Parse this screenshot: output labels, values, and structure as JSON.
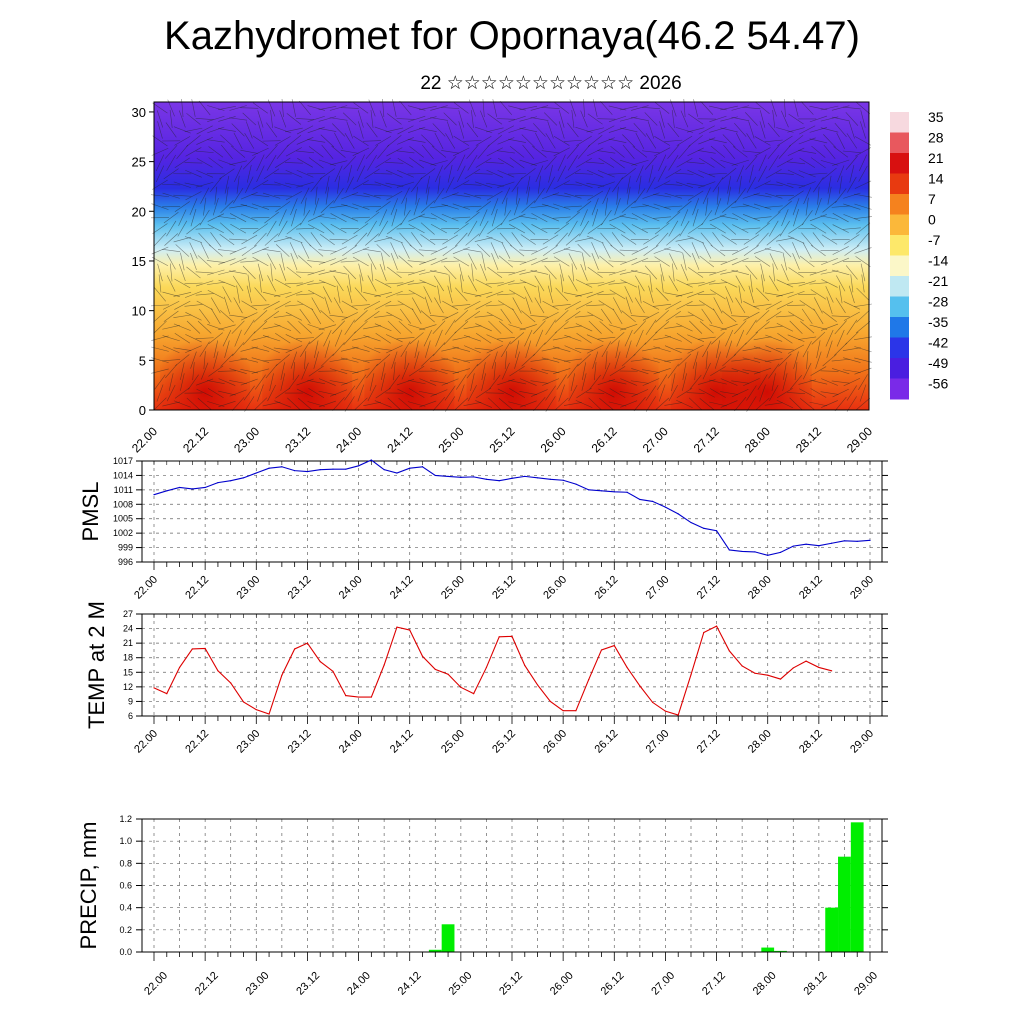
{
  "title": "Kazhydromet for Opornaya(46.2 54.47)",
  "subtitle": "22 ☆☆☆☆☆☆☆☆☆☆☆ 2026",
  "time_labels": [
    "22.00",
    "22.12",
    "23.00",
    "23.12",
    "24.00",
    "24.12",
    "25.00",
    "25.12",
    "26.00",
    "26.12",
    "27.00",
    "27.12",
    "28.00",
    "28.12",
    "29.00"
  ],
  "chart_data": [
    {
      "type": "heatmap",
      "name": "cross-section",
      "title": "",
      "ylim": [
        0,
        31
      ],
      "y_ticks": [
        0,
        5,
        10,
        15,
        20,
        25,
        30
      ],
      "color_scale": {
        "labels": [
          "35",
          "28",
          "21",
          "14",
          "7",
          "0",
          "-7",
          "-14",
          "-21",
          "-28",
          "-35",
          "-42",
          "-49",
          "-56"
        ],
        "colors": [
          "#f7d9df",
          "#e8585e",
          "#d81010",
          "#e83a10",
          "#f5821e",
          "#fbb83a",
          "#fde86a",
          "#fbf7c8",
          "#bfe8f2",
          "#55c0ee",
          "#1f78e8",
          "#2b35e8",
          "#4a1ee0",
          "#7a2ae8"
        ]
      },
      "overlay": "wind barbs"
    },
    {
      "type": "line",
      "name": "pmsl",
      "ylabel": "PMSL",
      "ylim": [
        996,
        1017
      ],
      "y_ticks": [
        996,
        999,
        1002,
        1005,
        1008,
        1011,
        1014,
        1017
      ],
      "color": "#0000cc",
      "x": [
        0,
        1,
        2,
        3,
        4,
        5,
        6,
        7,
        8,
        9,
        10,
        11,
        12,
        13,
        14,
        15,
        16,
        17,
        18,
        19,
        20,
        21,
        22,
        23,
        24,
        25,
        26,
        27,
        28,
        29,
        30,
        31,
        32,
        33,
        34,
        35,
        36,
        37,
        38,
        39,
        40,
        41,
        42,
        43,
        44,
        45,
        46,
        47,
        48,
        49,
        50,
        51,
        52,
        53,
        54,
        55,
        56
      ],
      "values": [
        1010,
        1010.8,
        1011.5,
        1011.2,
        1011.5,
        1012.5,
        1012.9,
        1013.5,
        1014.5,
        1015.5,
        1015.8,
        1015,
        1014.8,
        1015.2,
        1015.3,
        1015.3,
        1016,
        1017.2,
        1015.2,
        1014.5,
        1015.5,
        1015.8,
        1014,
        1013.8,
        1013.6,
        1013.7,
        1013.2,
        1012.9,
        1013.4,
        1013.8,
        1013.5,
        1013.2,
        1013,
        1012.2,
        1011,
        1010.8,
        1010.6,
        1010.5,
        1009,
        1008.6,
        1007.4,
        1006,
        1004.2,
        1003,
        1002.5,
        998.5,
        998.2,
        998.1,
        997.4,
        998,
        999.3,
        999.7,
        999.4,
        999.9,
        1000.4,
        1000.3,
        1000.5
      ]
    },
    {
      "type": "line",
      "name": "temp-2m",
      "ylabel": "TEMP at 2 M",
      "ylim": [
        6,
        27
      ],
      "y_ticks": [
        6,
        9,
        12,
        15,
        18,
        21,
        24,
        27
      ],
      "color": "#dd0000",
      "x": [
        0,
        1,
        2,
        3,
        4,
        5,
        6,
        7,
        8,
        9,
        10,
        11,
        12,
        13,
        14,
        15,
        16,
        17,
        18,
        19,
        20,
        21,
        22,
        23,
        24,
        25,
        26,
        27,
        28,
        29,
        30,
        31,
        32,
        33,
        34,
        35,
        36,
        37,
        38,
        39,
        40,
        41,
        42,
        43,
        44,
        45,
        46,
        47,
        48,
        49,
        50,
        51,
        52,
        53
      ],
      "values": [
        11.8,
        10.6,
        16,
        19.8,
        19.9,
        15.3,
        12.8,
        8.9,
        7.3,
        6.4,
        14.4,
        19.8,
        21,
        17.2,
        15.2,
        10.2,
        9.9,
        9.9,
        16.5,
        24.3,
        23.7,
        18.3,
        15.6,
        14.6,
        11.9,
        10.6,
        16,
        22.3,
        22.4,
        16.4,
        12.4,
        9,
        7.1,
        7.1,
        13.5,
        19.6,
        20.5,
        16,
        12.2,
        8.8,
        7,
        6.2,
        14.5,
        23.2,
        24.5,
        19.4,
        16.3,
        14.8,
        14.4,
        13.6,
        15.9,
        17.3,
        16,
        15.3
      ]
    },
    {
      "type": "bar",
      "name": "precip",
      "ylabel": "PRECIP, mm",
      "ylim": [
        0,
        1.2
      ],
      "y_ticks": [
        "0.0",
        "0.2",
        "0.4",
        "0.6",
        "0.8",
        "1.0",
        "1.2"
      ],
      "color": "#00ee00",
      "x": [
        22,
        23,
        48,
        49,
        53,
        54,
        55
      ],
      "values": [
        0.02,
        0.25,
        0.04,
        0.01,
        0.4,
        0.86,
        1.17
      ]
    }
  ]
}
